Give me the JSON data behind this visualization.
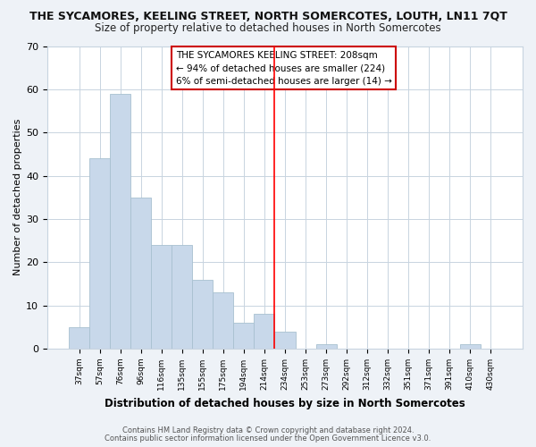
{
  "title": "THE SYCAMORES, KEELING STREET, NORTH SOMERCOTES, LOUTH, LN11 7QT",
  "subtitle": "Size of property relative to detached houses in North Somercotes",
  "xlabel": "Distribution of detached houses by size in North Somercotes",
  "ylabel": "Number of detached properties",
  "bar_labels": [
    "37sqm",
    "57sqm",
    "76sqm",
    "96sqm",
    "116sqm",
    "135sqm",
    "155sqm",
    "175sqm",
    "194sqm",
    "214sqm",
    "234sqm",
    "253sqm",
    "273sqm",
    "292sqm",
    "312sqm",
    "332sqm",
    "351sqm",
    "371sqm",
    "391sqm",
    "410sqm",
    "430sqm"
  ],
  "bar_heights": [
    5,
    44,
    59,
    35,
    24,
    24,
    16,
    13,
    6,
    8,
    4,
    0,
    1,
    0,
    0,
    0,
    0,
    0,
    0,
    1,
    0
  ],
  "bar_color": "#c8d8ea",
  "bar_edge_color": "#a8c0d0",
  "vline_x": 9.5,
  "vline_color": "red",
  "ylim": [
    0,
    70
  ],
  "yticks": [
    0,
    10,
    20,
    30,
    40,
    50,
    60,
    70
  ],
  "annotation_title": "THE SYCAMORES KEELING STREET: 208sqm",
  "annotation_line1": "← 94% of detached houses are smaller (224)",
  "annotation_line2": "6% of semi-detached houses are larger (14) →",
  "footer_line1": "Contains HM Land Registry data © Crown copyright and database right 2024.",
  "footer_line2": "Contains public sector information licensed under the Open Government Licence v3.0.",
  "background_color": "#eef2f7",
  "plot_background_color": "#ffffff",
  "title_fontsize": 9,
  "subtitle_fontsize": 8.5,
  "grid_color": "#c8d4e0",
  "annotation_edge_color": "#cc0000"
}
